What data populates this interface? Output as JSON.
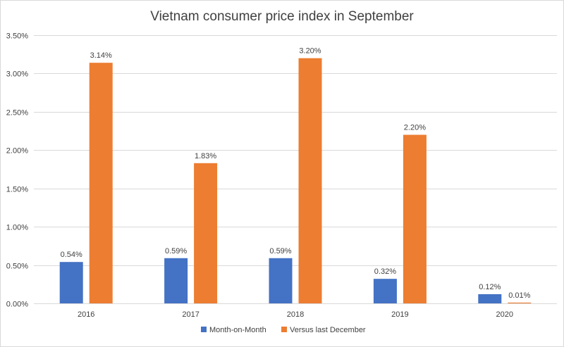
{
  "chart_data": {
    "type": "bar",
    "title": "Vietnam consumer price index in September",
    "categories": [
      "2016",
      "2017",
      "2018",
      "2019",
      "2020"
    ],
    "series": [
      {
        "name": "Month-on-Month",
        "values": [
          0.54,
          0.59,
          0.59,
          0.32,
          0.12
        ],
        "labels": [
          "0.54%",
          "0.59%",
          "0.59%",
          "0.32%",
          "0.12%"
        ],
        "color": "#4472c4"
      },
      {
        "name": "Versus last December",
        "values": [
          3.14,
          1.83,
          3.2,
          2.2,
          0.01
        ],
        "labels": [
          "3.14%",
          "1.83%",
          "3.20%",
          "2.20%",
          "0.01%"
        ],
        "color": "#ed7d31"
      }
    ],
    "ylim": [
      0,
      3.5
    ],
    "yticks": [
      "0.00%",
      "0.50%",
      "1.00%",
      "1.50%",
      "2.00%",
      "2.50%",
      "3.00%",
      "3.50%"
    ],
    "ytick_values": [
      0,
      0.5,
      1.0,
      1.5,
      2.0,
      2.5,
      3.0,
      3.5
    ],
    "grid": true,
    "legend_position": "bottom"
  }
}
